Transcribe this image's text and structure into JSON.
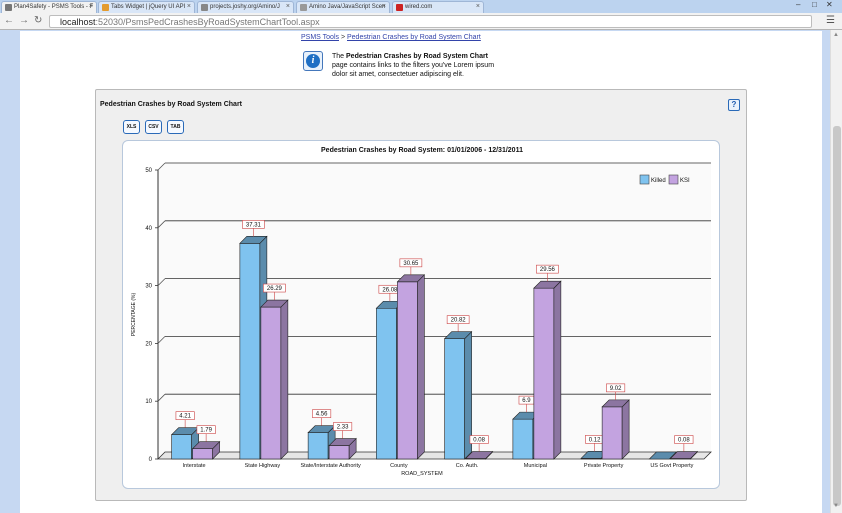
{
  "browser": {
    "tabs": [
      {
        "title": "Plan4Safety - PSMS Tools - F",
        "active": true,
        "favicon_color": "#777777"
      },
      {
        "title": "Tabs Widget | jQuery UI API",
        "active": false,
        "favicon_color": "#e39b2f"
      },
      {
        "title": "projects.joshy.org/Amino/J",
        "active": false,
        "favicon_color": "#888888"
      },
      {
        "title": "Amino Java/JavaScript Scen",
        "active": false,
        "favicon_color": "#999999"
      },
      {
        "title": "wired.com",
        "active": false,
        "favicon_color": "#cc2222"
      }
    ],
    "url_host": "localhost",
    "url_path": ":52030/PsmsPedCrashesByRoadSystemChartTool.aspx",
    "icons": {
      "back": "back-arrow-icon",
      "forward": "forward-arrow-icon",
      "reload": "reload-icon",
      "menu": "menu-icon"
    }
  },
  "breadcrumb": {
    "root": "PSMS Tools",
    "separator": ">",
    "current": "Pedestrian Crashes by Road System Chart"
  },
  "info": {
    "icon": "info-icon",
    "prefix": "The ",
    "bold": "Pedestrian Crashes by Road System Chart",
    "suffix": " page contains links to the filters you've Lorem ipsum dolor sit amet, consectetuer adipiscing elit."
  },
  "panel": {
    "title": "Pedestrian Crashes by Road System Chart",
    "help_label": "?",
    "export_buttons": [
      "XLS",
      "CSV",
      "TAB"
    ]
  },
  "chart_data": {
    "type": "bar",
    "title": "Pedestrian Crashes by Road System: 01/01/2006 - 12/31/2011",
    "xlabel": "ROAD_SYSTEM",
    "ylabel": "PERCENTAGE (%)",
    "ylim": [
      0,
      50
    ],
    "yticks": [
      "0",
      "10",
      "20",
      "30",
      "40",
      "50"
    ],
    "grid": true,
    "legend_position": "top-right",
    "categories": [
      "Interstate",
      "State Highway",
      "State/Interstate Authority",
      "County",
      "Co. Auth.",
      "Municipal",
      "Private Property",
      "US Govt Property"
    ],
    "series": [
      {
        "name": "Killed",
        "color": "#7fc3ef",
        "values": [
          4.21,
          37.31,
          4.56,
          26.08,
          20.82,
          6.9,
          0.12,
          0.0
        ],
        "labels": [
          "4.21",
          "37.31",
          "4.56",
          "26.08",
          "20.82",
          "6.9",
          "0.12",
          ""
        ]
      },
      {
        "name": "KSI",
        "color": "#c3a3e0",
        "values": [
          1.79,
          26.29,
          2.33,
          30.65,
          0.08,
          29.56,
          9.02,
          0.08
        ],
        "labels": [
          "1.79",
          "26.29",
          "2.33",
          "30.65",
          "0.08",
          "29.56",
          "9.02",
          "0.08"
        ]
      }
    ]
  }
}
